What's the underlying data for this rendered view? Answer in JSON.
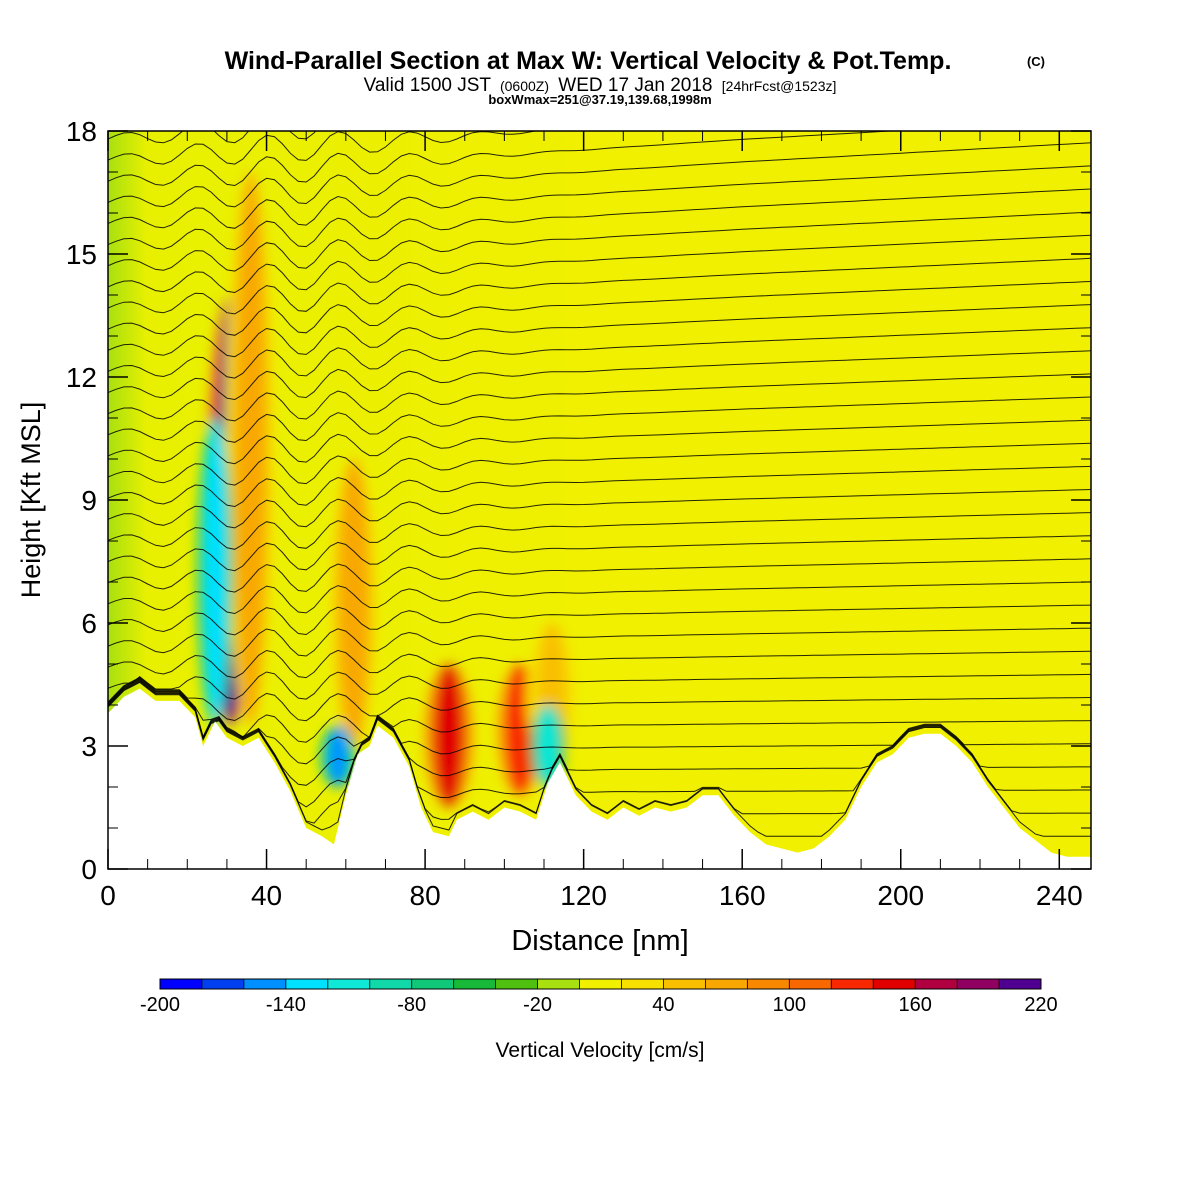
{
  "chart_data": {
    "type": "heatmap",
    "title": "Wind-Parallel Section at Max W: Vertical Velocity & Pot.Temp.",
    "title_mark": "(C)",
    "subtitle_valid": "Valid 1500 JST",
    "subtitle_utc": "(0600Z)",
    "subtitle_date": "WED 17 Jan 2018",
    "subtitle_fcst": "[24hrFcst@1523z]",
    "subtitle_box": "boxWmax=251@37.19,139.68,1998m",
    "xlabel": "Distance [nm]",
    "ylabel": "Height [Kft MSL]",
    "xlim": [
      0,
      248
    ],
    "ylim": [
      0,
      18
    ],
    "x_ticks": [
      0,
      40,
      80,
      120,
      160,
      200,
      240
    ],
    "y_ticks": [
      0,
      3,
      6,
      9,
      12,
      15,
      18
    ],
    "x_tick_labels": [
      "0",
      "40",
      "80",
      "120",
      "160",
      "200",
      "240"
    ],
    "y_tick_labels": [
      "0",
      "3",
      "6",
      "9",
      "12",
      "15",
      "18"
    ],
    "colorbar": {
      "label": "Vertical Velocity [cm/s]",
      "min": -200,
      "max": 220,
      "step": 20,
      "tick_values": [
        -200,
        -140,
        -80,
        -20,
        40,
        100,
        160,
        220
      ],
      "tick_labels": [
        "-200",
        "-140",
        "-80",
        "-20",
        "40",
        "100",
        "160",
        "220"
      ],
      "colors": [
        "#0000ff",
        "#0040f0",
        "#0090ff",
        "#00e0ff",
        "#10e8d8",
        "#10d8a8",
        "#10c878",
        "#18b838",
        "#50c010",
        "#a8e010",
        "#f0f000",
        "#f8e000",
        "#f8c000",
        "#f8a800",
        "#f88800",
        "#f86800",
        "#f82800",
        "#e00000",
        "#b00040",
        "#900060",
        "#500090"
      ]
    },
    "terrain": [
      [
        0,
        3.8
      ],
      [
        4,
        4.2
      ],
      [
        8,
        4.4
      ],
      [
        12,
        4.1
      ],
      [
        18,
        4.1
      ],
      [
        22,
        3.7
      ],
      [
        24,
        3.0
      ],
      [
        27,
        3.6
      ],
      [
        30,
        3.2
      ],
      [
        34,
        3.0
      ],
      [
        38,
        3.2
      ],
      [
        42,
        2.6
      ],
      [
        46,
        1.9
      ],
      [
        50,
        1.0
      ],
      [
        54,
        0.8
      ],
      [
        57,
        0.6
      ],
      [
        60,
        1.8
      ],
      [
        63,
        2.8
      ],
      [
        66,
        3.0
      ],
      [
        68,
        3.5
      ],
      [
        72,
        3.2
      ],
      [
        76,
        2.5
      ],
      [
        79,
        1.5
      ],
      [
        82,
        0.9
      ],
      [
        86,
        0.8
      ],
      [
        88,
        1.2
      ],
      [
        92,
        1.4
      ],
      [
        96,
        1.2
      ],
      [
        100,
        1.5
      ],
      [
        104,
        1.4
      ],
      [
        108,
        1.2
      ],
      [
        111,
        2.1
      ],
      [
        114,
        2.6
      ],
      [
        118,
        1.8
      ],
      [
        122,
        1.4
      ],
      [
        126,
        1.2
      ],
      [
        130,
        1.5
      ],
      [
        134,
        1.3
      ],
      [
        138,
        1.5
      ],
      [
        142,
        1.4
      ],
      [
        146,
        1.5
      ],
      [
        150,
        1.8
      ],
      [
        154,
        1.8
      ],
      [
        158,
        1.3
      ],
      [
        162,
        0.9
      ],
      [
        166,
        0.6
      ],
      [
        170,
        0.5
      ],
      [
        174,
        0.4
      ],
      [
        178,
        0.5
      ],
      [
        182,
        0.8
      ],
      [
        186,
        1.2
      ],
      [
        190,
        2.0
      ],
      [
        194,
        2.6
      ],
      [
        198,
        2.8
      ],
      [
        202,
        3.2
      ],
      [
        206,
        3.3
      ],
      [
        210,
        3.3
      ],
      [
        214,
        3.0
      ],
      [
        218,
        2.6
      ],
      [
        222,
        2.0
      ],
      [
        226,
        1.5
      ],
      [
        230,
        1.0
      ],
      [
        234,
        0.7
      ],
      [
        238,
        0.4
      ],
      [
        242,
        0.3
      ],
      [
        248,
        0.3
      ]
    ],
    "updrafts": [
      {
        "x": 31,
        "y_from": 3.5,
        "y_to": 14,
        "w_max": 210
      },
      {
        "x": 36,
        "y_from": 3.5,
        "y_to": 17,
        "w_max": 60
      },
      {
        "x": 62,
        "y_from": 3.0,
        "y_to": 10,
        "w_max": 60
      },
      {
        "x": 86,
        "y_from": 1.5,
        "y_to": 5,
        "w_max": 150
      },
      {
        "x": 104,
        "y_from": 1.8,
        "y_to": 5,
        "w_max": 120
      },
      {
        "x": 112,
        "y_from": 2.5,
        "y_to": 6,
        "w_max": 40
      }
    ],
    "downdrafts": [
      {
        "x": 27,
        "y_from": 3.5,
        "y_to": 11,
        "w_min": -140
      },
      {
        "x": 58,
        "y_from": 2.0,
        "y_to": 3.5,
        "w_min": -150
      },
      {
        "x": 111,
        "y_from": 2.0,
        "y_to": 4.0,
        "w_min": -110
      }
    ]
  }
}
